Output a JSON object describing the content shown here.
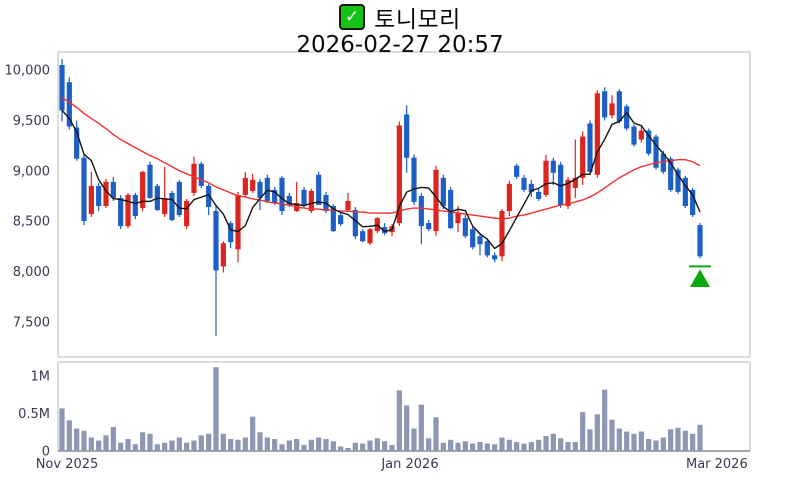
{
  "header": {
    "title": "토니모리",
    "subtitle": "2026-02-27 20:57",
    "checkbox_glyph": "✓"
  },
  "colors": {
    "up_candle": "#dc2421",
    "down_candle": "#1d5fc4",
    "ma_short": "#141414",
    "ma_long": "#f23030",
    "volume_bar": "#8d96b2",
    "axis_text": "#3a3a55",
    "panel_border": "#b8b8b8",
    "baseline": "#8a8a8a",
    "marker_green": "#0da810",
    "checkbox_green": "#15c315"
  },
  "chart_data": {
    "type": "candlestick",
    "title": "토니모리",
    "timestamp": "2026-02-27 20:57",
    "legend_position": "none",
    "grid": false,
    "price_ticks": [
      {
        "value": 10000,
        "label": "10,000"
      },
      {
        "value": 9500,
        "label": "9,500"
      },
      {
        "value": 9000,
        "label": "9,000"
      },
      {
        "value": 8500,
        "label": "8,500"
      },
      {
        "value": 8000,
        "label": "8,000"
      },
      {
        "value": 7500,
        "label": "7,500"
      }
    ],
    "ylim_price": [
      7150,
      10180
    ],
    "volume_ticks": [
      {
        "value": 1.0,
        "label": "1M"
      },
      {
        "value": 0.5,
        "label": "0.5M"
      },
      {
        "value": 0.0,
        "label": "0"
      }
    ],
    "ylim_volume": [
      0,
      1.19
    ],
    "x_ticks": [
      {
        "label": "Nov 2025",
        "index": 0.68
      },
      {
        "label": "Jan 2026",
        "index": 47.45
      },
      {
        "label": "Mar 2026",
        "index": 89.3
      }
    ],
    "ohlcv_note": "each candle = [open, high, low, close, volume_millions]",
    "candles": [
      [
        10050,
        10110,
        9490,
        9600,
        0.57
      ],
      [
        9880,
        9930,
        9410,
        9440,
        0.41
      ],
      [
        9430,
        9500,
        9100,
        9120,
        0.3
      ],
      [
        9130,
        9160,
        8460,
        8500,
        0.27
      ],
      [
        8570,
        8990,
        8540,
        8850,
        0.18
      ],
      [
        8850,
        8880,
        8600,
        8650,
        0.14
      ],
      [
        8650,
        8920,
        8630,
        8890,
        0.21
      ],
      [
        8890,
        8940,
        8700,
        8730,
        0.32
      ],
      [
        8730,
        8760,
        8420,
        8450,
        0.11
      ],
      [
        8450,
        8780,
        8430,
        8760,
        0.16
      ],
      [
        8760,
        8780,
        8520,
        8550,
        0.09
      ],
      [
        8630,
        9000,
        8600,
        8990,
        0.25
      ],
      [
        9060,
        9090,
        8720,
        8730,
        0.23
      ],
      [
        8850,
        8870,
        8600,
        8610,
        0.09
      ],
      [
        8570,
        9040,
        8540,
        8730,
        0.11
      ],
      [
        8780,
        8800,
        8500,
        8510,
        0.14
      ],
      [
        8890,
        8910,
        8540,
        8560,
        0.18
      ],
      [
        8450,
        8720,
        8420,
        8700,
        0.11
      ],
      [
        8780,
        9140,
        8750,
        9070,
        0.14
      ],
      [
        9070,
        9090,
        8830,
        8850,
        0.21
      ],
      [
        8850,
        8870,
        8560,
        8640,
        0.23
      ],
      [
        8600,
        8660,
        7360,
        8010,
        1.12
      ],
      [
        8050,
        8300,
        7990,
        8280,
        0.23
      ],
      [
        8480,
        8500,
        8230,
        8290,
        0.16
      ],
      [
        8220,
        8790,
        8090,
        8760,
        0.15
      ],
      [
        8760,
        8990,
        8740,
        8930,
        0.18
      ],
      [
        8800,
        8970,
        8780,
        8910,
        0.46
      ],
      [
        8890,
        8920,
        8610,
        8730,
        0.25
      ],
      [
        8930,
        8960,
        8680,
        8700,
        0.18
      ],
      [
        8810,
        8840,
        8660,
        8680,
        0.16
      ],
      [
        8930,
        8950,
        8560,
        8600,
        0.09
      ],
      [
        8750,
        8780,
        8640,
        8660,
        0.14
      ],
      [
        8600,
        8890,
        8590,
        8680,
        0.16
      ],
      [
        8810,
        8840,
        8630,
        8650,
        0.08
      ],
      [
        8600,
        8820,
        8580,
        8800,
        0.15
      ],
      [
        8960,
        8990,
        8660,
        8660,
        0.18
      ],
      [
        8760,
        8790,
        8580,
        8600,
        0.16
      ],
      [
        8650,
        8670,
        8390,
        8400,
        0.13
      ],
      [
        8560,
        8580,
        8450,
        8470,
        0.06
      ],
      [
        8610,
        8780,
        8590,
        8700,
        0.04
      ],
      [
        8610,
        8640,
        8320,
        8350,
        0.11
      ],
      [
        8400,
        8420,
        8290,
        8300,
        0.1
      ],
      [
        8280,
        8430,
        8260,
        8420,
        0.14
      ],
      [
        8400,
        8540,
        8380,
        8530,
        0.17
      ],
      [
        8440,
        8480,
        8360,
        8380,
        0.13
      ],
      [
        8390,
        8470,
        8350,
        8450,
        0.08
      ],
      [
        8480,
        9490,
        8450,
        9450,
        0.81
      ],
      [
        9560,
        9650,
        8980,
        9130,
        0.61
      ],
      [
        9130,
        9160,
        8660,
        8690,
        0.3
      ],
      [
        8750,
        8780,
        8270,
        8450,
        0.62
      ],
      [
        8480,
        8510,
        8400,
        8420,
        0.17
      ],
      [
        8400,
        9050,
        8350,
        9010,
        0.45
      ],
      [
        8930,
        8960,
        8620,
        8650,
        0.11
      ],
      [
        8810,
        8840,
        8420,
        8430,
        0.15
      ],
      [
        8480,
        8650,
        8390,
        8580,
        0.11
      ],
      [
        8530,
        8560,
        8330,
        8350,
        0.13
      ],
      [
        8420,
        8440,
        8220,
        8240,
        0.1
      ],
      [
        8350,
        8380,
        8160,
        8270,
        0.12
      ],
      [
        8300,
        8330,
        8140,
        8160,
        0.1
      ],
      [
        8160,
        8190,
        8090,
        8120,
        0.09
      ],
      [
        8150,
        8620,
        8100,
        8600,
        0.18
      ],
      [
        8600,
        8900,
        8550,
        8870,
        0.15
      ],
      [
        9050,
        9070,
        8920,
        8940,
        0.12
      ],
      [
        8930,
        8960,
        8790,
        8810,
        0.1
      ],
      [
        8870,
        8910,
        8740,
        8790,
        0.12
      ],
      [
        8790,
        8830,
        8700,
        8720,
        0.15
      ],
      [
        8760,
        9160,
        8740,
        9100,
        0.2
      ],
      [
        9100,
        9130,
        8860,
        8980,
        0.23
      ],
      [
        9060,
        9090,
        8630,
        8660,
        0.17
      ],
      [
        8650,
        8940,
        8620,
        8910,
        0.12
      ],
      [
        8830,
        9310,
        8730,
        8930,
        0.12
      ],
      [
        8930,
        9390,
        8860,
        9340,
        0.52
      ],
      [
        9470,
        9500,
        8960,
        8990,
        0.29
      ],
      [
        8960,
        9800,
        8930,
        9770,
        0.49
      ],
      [
        9790,
        9830,
        9500,
        9530,
        0.82
      ],
      [
        9550,
        9750,
        9520,
        9670,
        0.42
      ],
      [
        9790,
        9810,
        9470,
        9490,
        0.3
      ],
      [
        9640,
        9660,
        9400,
        9420,
        0.26
      ],
      [
        9440,
        9460,
        9240,
        9260,
        0.23
      ],
      [
        9310,
        9450,
        9280,
        9400,
        0.26
      ],
      [
        9400,
        9420,
        9150,
        9170,
        0.16
      ],
      [
        9340,
        9360,
        9010,
        9030,
        0.14
      ],
      [
        9170,
        9200,
        8970,
        8990,
        0.18
      ],
      [
        9120,
        9140,
        8790,
        8810,
        0.29
      ],
      [
        9010,
        9030,
        8770,
        8790,
        0.31
      ],
      [
        8930,
        8950,
        8630,
        8650,
        0.27
      ],
      [
        8810,
        8830,
        8540,
        8560,
        0.23
      ],
      [
        8460,
        8480,
        8130,
        8150,
        0.35
      ]
    ],
    "ma_short_window": 5,
    "ma_long": [
      9730,
      9680,
      9630,
      9570,
      9520,
      9470,
      9420,
      9360,
      9310,
      9270,
      9230,
      9190,
      9150,
      9120,
      9080,
      9040,
      9000,
      8970,
      8940,
      8910,
      8880,
      8840,
      8810,
      8780,
      8750,
      8740,
      8720,
      8710,
      8690,
      8680,
      8670,
      8660,
      8640,
      8630,
      8620,
      8620,
      8610,
      8610,
      8600,
      8600,
      8590,
      8590,
      8580,
      8580,
      8580,
      8580,
      8600,
      8620,
      8630,
      8630,
      8620,
      8610,
      8600,
      8590,
      8580,
      8570,
      8560,
      8550,
      8540,
      8530,
      8520,
      8530,
      8550,
      8560,
      8580,
      8600,
      8620,
      8640,
      8660,
      8670,
      8690,
      8710,
      8740,
      8780,
      8830,
      8880,
      8930,
      8970,
      9010,
      9040,
      9060,
      9080,
      9090,
      9100,
      9110,
      9110,
      9090,
      9050
    ],
    "marker": {
      "type": "triangle-up-with-line",
      "index": 87,
      "line_price": 8050,
      "apex_price": 8020,
      "base_price": 7845
    }
  }
}
